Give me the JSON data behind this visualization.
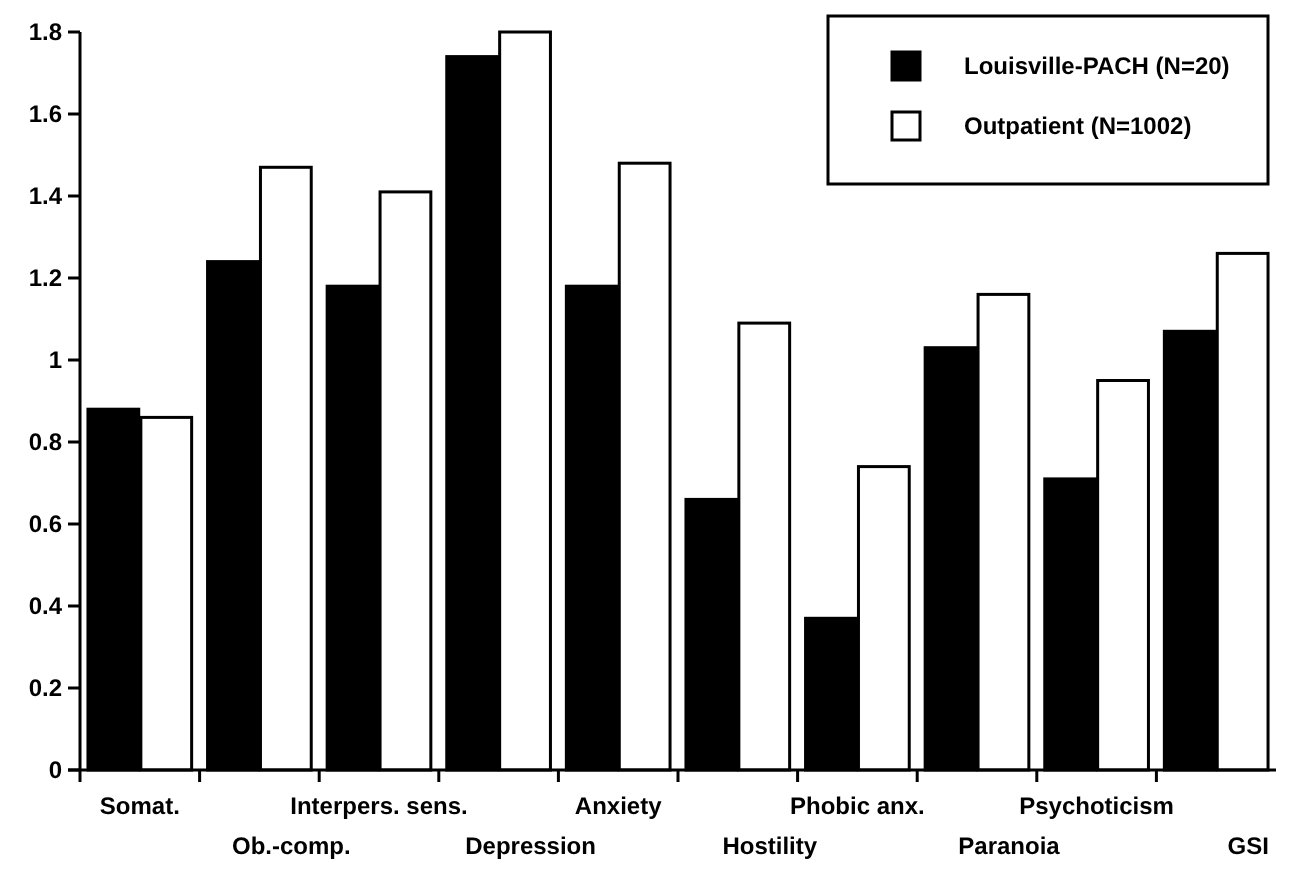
{
  "chart_data": {
    "type": "bar",
    "categories": [
      "Somat.",
      "Ob.-comp.",
      "Interpers. sens.",
      "Depression",
      "Anxiety",
      "Hostility",
      "Phobic anx.",
      "Paranoia",
      "Psychoticism",
      "GSI"
    ],
    "series": [
      {
        "name": "Louisville-PACH (N=20)",
        "color": "#000000",
        "values": [
          0.88,
          1.24,
          1.18,
          1.74,
          1.18,
          0.66,
          0.37,
          1.03,
          0.71,
          1.07
        ]
      },
      {
        "name": "Outpatient (N=1002)",
        "color": "#ffffff",
        "values": [
          0.86,
          1.47,
          1.41,
          1.8,
          1.48,
          1.09,
          0.74,
          1.16,
          0.95,
          1.26
        ]
      }
    ],
    "ylim": [
      0,
      1.8
    ],
    "yticks": [
      0,
      0.2,
      0.4,
      0.6,
      0.8,
      1,
      1.2,
      1.4,
      1.6,
      1.8
    ],
    "grid": false,
    "legend": "top right"
  }
}
